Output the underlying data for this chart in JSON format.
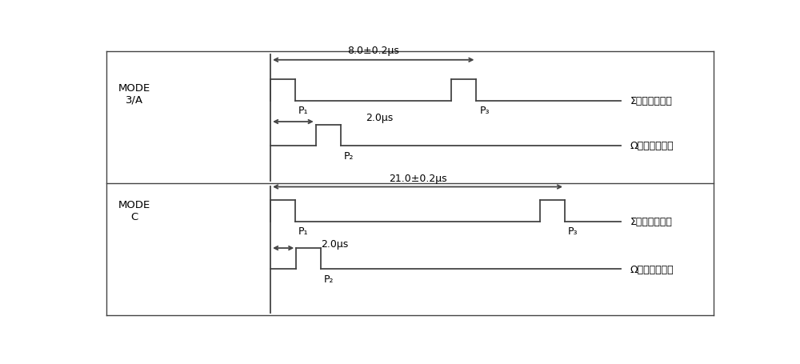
{
  "bg_color": "#ffffff",
  "line_color": "#444444",
  "text_color": "#000000",
  "fig_width": 10.0,
  "fig_height": 4.56,
  "dpi": 100,
  "mode3a_label": "MODE\n3/A",
  "modeC_label": "MODE\nC",
  "sigma_label": "Σ天线发射信号",
  "omega_label": "Ω天线发射信号",
  "top_span_label": "8.0±0.2μs",
  "bottom_span_label": "21.0±0.2μs",
  "p2_offset_label": "2.0μs",
  "p1_label": "P₁",
  "p2_label": "P₂",
  "p3_label": "P₃",
  "lw": 1.3
}
